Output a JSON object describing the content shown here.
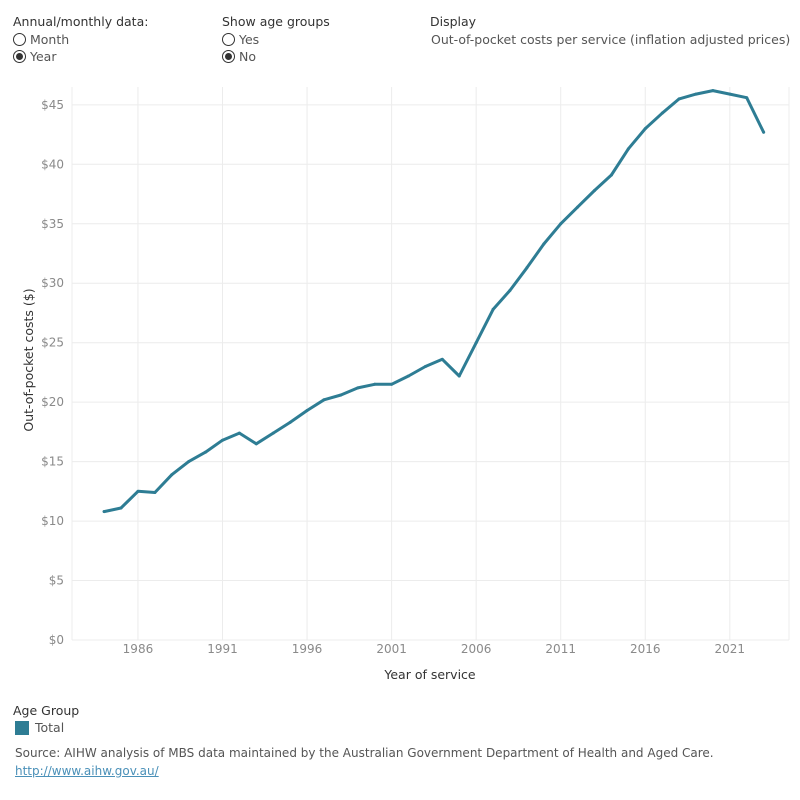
{
  "controls": {
    "annual_monthly": {
      "title": "Annual/monthly data:",
      "options": [
        {
          "label": "Month",
          "selected": false
        },
        {
          "label": "Year",
          "selected": true
        }
      ]
    },
    "age_groups": {
      "title": "Show age groups",
      "options": [
        {
          "label": "Yes",
          "selected": false
        },
        {
          "label": "No",
          "selected": true
        }
      ]
    },
    "display": {
      "title": "Display",
      "value": "Out-of-pocket costs per service (inflation adjusted prices)"
    }
  },
  "colors": {
    "series": "#2e7d94",
    "grid": "#ececec",
    "tick_text": "#8a8a8a"
  },
  "chart_data": {
    "type": "line",
    "xlabel": "Year of service",
    "ylabel": "Out-of-pocket costs ($)",
    "ylim": [
      0,
      46.5
    ],
    "xlim": [
      1982.1,
      2024.5
    ],
    "grid": true,
    "legend_position": "bottom-left",
    "x_ticks": [
      1986,
      1991,
      1996,
      2001,
      2006,
      2011,
      2016,
      2021
    ],
    "y_ticks": [
      0,
      5,
      10,
      15,
      20,
      25,
      30,
      35,
      40,
      45
    ],
    "y_tick_labels": [
      "$0",
      "$5",
      "$10",
      "$15",
      "$20",
      "$25",
      "$30",
      "$35",
      "$40",
      "$45"
    ],
    "x": [
      1984,
      1985,
      1986,
      1987,
      1988,
      1989,
      1990,
      1991,
      1992,
      1993,
      1994,
      1995,
      1996,
      1997,
      1998,
      1999,
      2000,
      2001,
      2002,
      2003,
      2004,
      2005,
      2006,
      2007,
      2008,
      2009,
      2010,
      2011,
      2012,
      2013,
      2014,
      2015,
      2016,
      2017,
      2018,
      2019,
      2020,
      2021,
      2022,
      2023
    ],
    "series": [
      {
        "name": "Total",
        "values": [
          10.8,
          11.1,
          12.5,
          12.4,
          13.9,
          15.0,
          15.8,
          16.8,
          17.4,
          16.5,
          17.4,
          18.3,
          19.3,
          20.2,
          20.6,
          21.2,
          21.5,
          21.5,
          22.2,
          23.0,
          23.6,
          22.2,
          25.0,
          27.8,
          29.4,
          31.3,
          33.3,
          35.0,
          36.4,
          37.8,
          39.1,
          41.3,
          43.0,
          44.3,
          45.5,
          45.9,
          46.2,
          45.9,
          45.6,
          42.7
        ]
      }
    ]
  },
  "legend": {
    "title": "Age Group",
    "items": [
      {
        "label": "Total"
      }
    ]
  },
  "footer": {
    "source": "Source: AIHW analysis of MBS data maintained by the Australian Government Department of Health and Aged Care.",
    "link": "http://www.aihw.gov.au/"
  }
}
